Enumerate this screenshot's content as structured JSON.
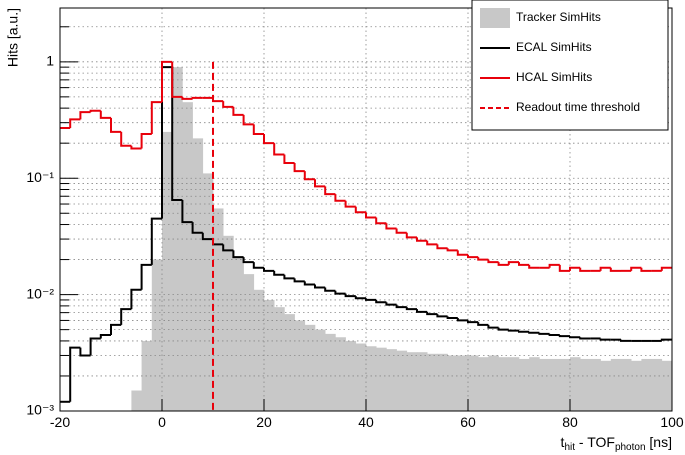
{
  "chart_data": {
    "type": "histogram",
    "bins": [
      -20,
      -18,
      -16,
      -14,
      -12,
      -10,
      -8,
      -6,
      -4,
      -2,
      0,
      2,
      4,
      6,
      8,
      10,
      12,
      14,
      16,
      18,
      20,
      22,
      24,
      26,
      28,
      30,
      32,
      34,
      36,
      38,
      40,
      42,
      44,
      46,
      48,
      50,
      52,
      54,
      56,
      58,
      60,
      62,
      64,
      66,
      68,
      70,
      72,
      74,
      76,
      78,
      80,
      82,
      84,
      86,
      88,
      90,
      92,
      94,
      96,
      98,
      100
    ],
    "series": [
      {
        "name": "Tracker SimHits",
        "color": "#c8c8c8",
        "style": "fill",
        "values": [
          0,
          0,
          0,
          0,
          0,
          0,
          0,
          0.0015,
          0.004,
          0.02,
          0.25,
          0.9,
          0.45,
          0.22,
          0.11,
          0.055,
          0.032,
          0.021,
          0.015,
          0.011,
          0.009,
          0.0078,
          0.0068,
          0.006,
          0.0055,
          0.005,
          0.0046,
          0.0043,
          0.004,
          0.0038,
          0.0036,
          0.0035,
          0.0034,
          0.0033,
          0.0032,
          0.0032,
          0.0031,
          0.0031,
          0.003,
          0.003,
          0.003,
          0.0029,
          0.003,
          0.0029,
          0.0029,
          0.0028,
          0.0029,
          0.0028,
          0.0028,
          0.0028,
          0.0029,
          0.0028,
          0.0028,
          0.0027,
          0.0028,
          0.0028,
          0.0027,
          0.0028,
          0.0028,
          0.0027
        ]
      },
      {
        "name": "ECAL SimHits",
        "color": "#000000",
        "style": "step",
        "values": [
          0.0012,
          0.0035,
          0.003,
          0.0042,
          0.0045,
          0.0055,
          0.0075,
          0.011,
          0.018,
          0.045,
          0.9,
          0.065,
          0.042,
          0.034,
          0.03,
          0.027,
          0.024,
          0.021,
          0.019,
          0.017,
          0.016,
          0.0148,
          0.0138,
          0.013,
          0.0122,
          0.0115,
          0.0108,
          0.0102,
          0.0097,
          0.0093,
          0.009,
          0.0086,
          0.0082,
          0.0078,
          0.0075,
          0.0071,
          0.0068,
          0.0065,
          0.0063,
          0.006,
          0.0058,
          0.0055,
          0.0052,
          0.005,
          0.0049,
          0.0048,
          0.0047,
          0.0046,
          0.0045,
          0.0044,
          0.0043,
          0.0042,
          0.0042,
          0.0041,
          0.0041,
          0.004,
          0.004,
          0.004,
          0.004,
          0.0041
        ]
      },
      {
        "name": "HCAL SimHits",
        "color": "#e8000b",
        "style": "step",
        "values": [
          0.27,
          0.32,
          0.37,
          0.38,
          0.33,
          0.25,
          0.19,
          0.18,
          0.24,
          0.45,
          1.0,
          0.5,
          0.48,
          0.49,
          0.49,
          0.46,
          0.41,
          0.35,
          0.29,
          0.24,
          0.2,
          0.16,
          0.135,
          0.115,
          0.098,
          0.085,
          0.073,
          0.064,
          0.057,
          0.051,
          0.046,
          0.041,
          0.037,
          0.034,
          0.031,
          0.029,
          0.027,
          0.025,
          0.024,
          0.022,
          0.021,
          0.02,
          0.019,
          0.018,
          0.019,
          0.018,
          0.017,
          0.017,
          0.018,
          0.016,
          0.017,
          0.016,
          0.016,
          0.017,
          0.016,
          0.016,
          0.017,
          0.016,
          0.016,
          0.017
        ]
      }
    ],
    "threshold": {
      "name": "Readout time threshold",
      "x": 10,
      "ymax": 1,
      "color": "#e8000b"
    },
    "xlabel": [
      "t",
      "hit",
      " - TOF",
      "photon",
      " [ns]"
    ],
    "ylabel": "Hits [a.u.]",
    "xlim": [
      -20,
      100
    ],
    "xticks": [
      -20,
      0,
      20,
      40,
      60,
      80,
      100
    ],
    "ylim": [
      0.001,
      2.9
    ],
    "log_y": true,
    "yticks": [
      {
        "value": 0.001,
        "label": "10⁻³"
      },
      {
        "value": 0.01,
        "label": "10⁻²"
      },
      {
        "value": 0.1,
        "label": "10⁻¹"
      },
      1
    ],
    "yminorticks": [
      0.002,
      0.003,
      0.004,
      0.005,
      0.006,
      0.007,
      0.008,
      0.009,
      0.02,
      0.03,
      0.04,
      0.05,
      0.06,
      0.07,
      0.08,
      0.09,
      0.2,
      0.3,
      0.4,
      0.5,
      0.6,
      0.7,
      0.8,
      0.9,
      2
    ],
    "grid": true
  }
}
